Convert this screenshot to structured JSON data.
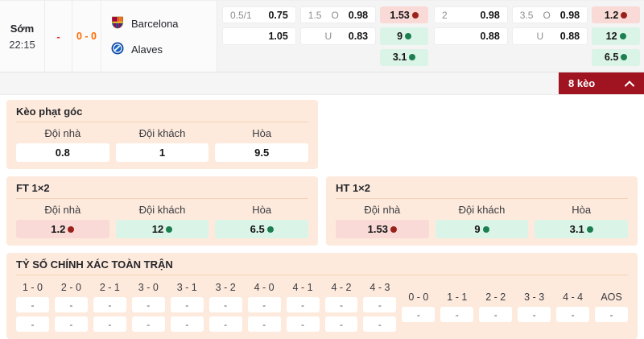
{
  "match": {
    "status": "Sớm",
    "time": "22:15",
    "dash": "-",
    "score": "0 - 0",
    "home_team": "Barcelona",
    "away_team": "Alaves"
  },
  "odds": [
    {
      "handicap": {
        "line_top": "0.5/1",
        "odds_top": "0.75",
        "line_bottom": "",
        "odds_bottom": "1.05"
      },
      "over_under": {
        "line": "1.5",
        "over_label": "O",
        "over_odds": "0.98",
        "under_label": "U",
        "under_odds": "0.83"
      },
      "one_x_two": [
        {
          "value": "1.53",
          "trend": "down"
        },
        {
          "value": "9",
          "trend": "up"
        },
        {
          "value": "3.1",
          "trend": "up"
        }
      ]
    },
    {
      "handicap": {
        "line_top": "2",
        "odds_top": "0.98",
        "line_bottom": "",
        "odds_bottom": "0.88"
      },
      "over_under": {
        "line": "3.5",
        "over_label": "O",
        "over_odds": "0.98",
        "under_label": "U",
        "under_odds": "0.88"
      },
      "one_x_two": [
        {
          "value": "1.2",
          "trend": "down"
        },
        {
          "value": "12",
          "trend": "up"
        },
        {
          "value": "6.5",
          "trend": "up"
        }
      ]
    }
  ],
  "keo_bar": {
    "label": "8 kèo"
  },
  "corner_section": {
    "title": "Kèo phạt góc",
    "headers": [
      "Đội nhà",
      "Đội khách",
      "Hòa"
    ],
    "cells": [
      {
        "value": "0.8"
      },
      {
        "value": "1"
      },
      {
        "value": "9.5"
      }
    ]
  },
  "ft_section": {
    "title": "FT 1×2",
    "headers": [
      "Đội nhà",
      "Đội khách",
      "Hòa"
    ],
    "cells": [
      {
        "value": "1.2",
        "trend": "down"
      },
      {
        "value": "12",
        "trend": "up"
      },
      {
        "value": "6.5",
        "trend": "up"
      }
    ]
  },
  "ht_section": {
    "title": "HT 1×2",
    "headers": [
      "Đội nhà",
      "Đội khách",
      "Hòa"
    ],
    "cells": [
      {
        "value": "1.53",
        "trend": "down"
      },
      {
        "value": "9",
        "trend": "up"
      },
      {
        "value": "3.1",
        "trend": "up"
      }
    ]
  },
  "exact_score": {
    "title": "TỶ SỐ CHÍNH XÁC TOÀN TRẬN",
    "win_columns": [
      {
        "label": "1 - 0",
        "rows": [
          "-",
          "-"
        ]
      },
      {
        "label": "2 - 0",
        "rows": [
          "-",
          "-"
        ]
      },
      {
        "label": "2 - 1",
        "rows": [
          "-",
          "-"
        ]
      },
      {
        "label": "3 - 0",
        "rows": [
          "-",
          "-"
        ]
      },
      {
        "label": "3 - 1",
        "rows": [
          "-",
          "-"
        ]
      },
      {
        "label": "3 - 2",
        "rows": [
          "-",
          "-"
        ]
      },
      {
        "label": "4 - 0",
        "rows": [
          "-",
          "-"
        ]
      },
      {
        "label": "4 - 1",
        "rows": [
          "-",
          "-"
        ]
      },
      {
        "label": "4 - 2",
        "rows": [
          "-",
          "-"
        ]
      },
      {
        "label": "4 - 3",
        "rows": [
          "-",
          "-"
        ]
      }
    ],
    "draw_columns": [
      {
        "label": "0 - 0",
        "rows": [
          "-"
        ]
      },
      {
        "label": "1 - 1",
        "rows": [
          "-"
        ]
      },
      {
        "label": "2 - 2",
        "rows": [
          "-"
        ]
      },
      {
        "label": "3 - 3",
        "rows": [
          "-"
        ]
      },
      {
        "label": "4 - 4",
        "rows": [
          "-"
        ]
      },
      {
        "label": "AOS",
        "rows": [
          "-"
        ]
      }
    ]
  },
  "colors": {
    "accent_red": "#a01422",
    "pink_cell": "#f9dad6",
    "green_cell": "#daf4e7",
    "dot_red": "#9b221b",
    "dot_green": "#1d7f50",
    "score_orange": "#ff6b00",
    "panel_peach": "#fdeadc"
  }
}
